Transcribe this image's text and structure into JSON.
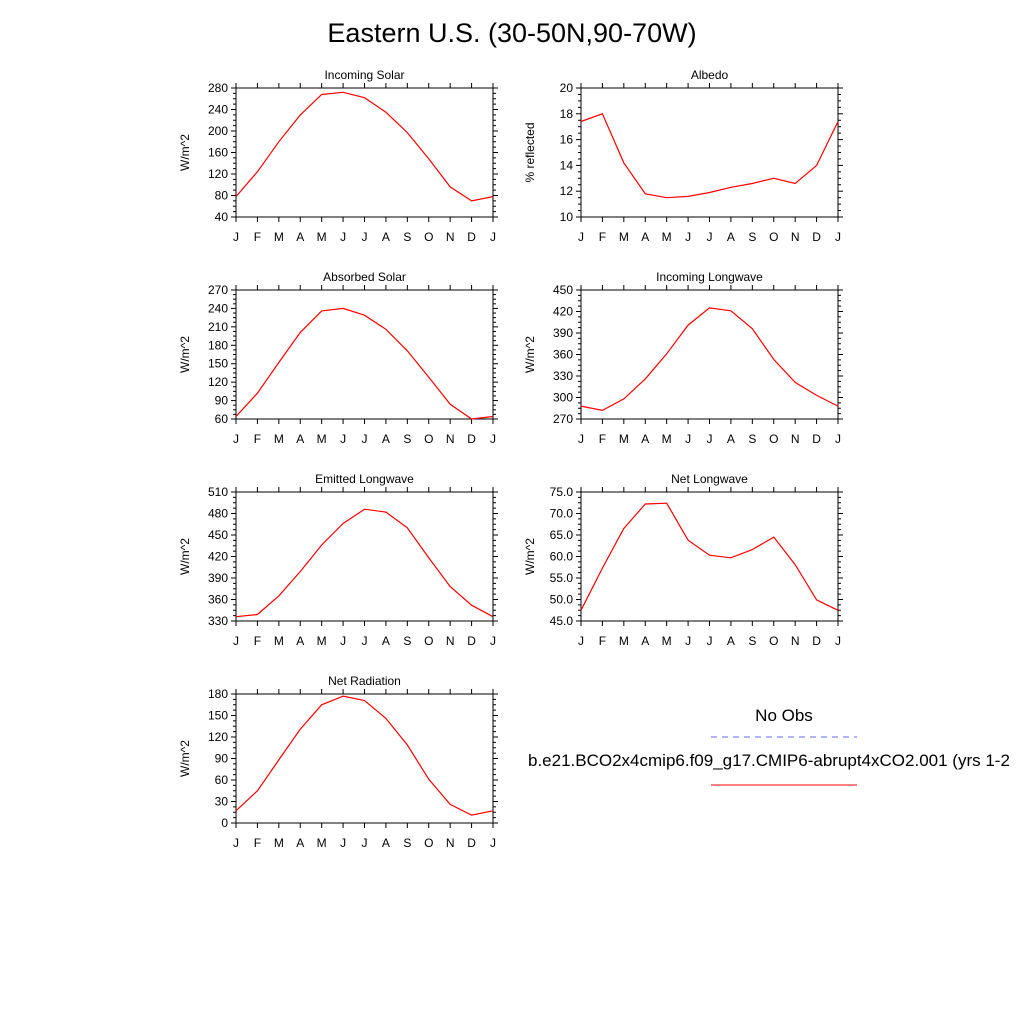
{
  "title": "Eastern U.S. (30-50N,90-70W)",
  "months": [
    "J",
    "F",
    "M",
    "A",
    "M",
    "J",
    "J",
    "A",
    "S",
    "O",
    "N",
    "D",
    "J"
  ],
  "colors": {
    "model": "#ff0000",
    "obs": "#6666ff"
  },
  "legend": {
    "obs_label": "No Obs",
    "model_label": "b.e21.BCO2x4cmip6.f09_g17.CMIP6-abrupt4xCO2.001 (yrs 1-2"
  },
  "chart_data": [
    {
      "type": "line",
      "title": "Incoming Solar",
      "ylabel": "W/m^2",
      "ylim": [
        40,
        280
      ],
      "yticks": [
        40,
        80,
        120,
        160,
        200,
        240,
        280
      ],
      "ytick_labels": [
        "40",
        "80",
        "120",
        "160",
        "200",
        "240",
        "280"
      ],
      "series": [
        {
          "values": [
            78,
            124,
            180,
            230,
            268,
            272,
            262,
            235,
            197,
            148,
            96,
            70,
            78
          ]
        }
      ]
    },
    {
      "type": "line",
      "title": "Albedo",
      "ylabel": "% reflected",
      "ylim": [
        10,
        20
      ],
      "yticks": [
        10,
        12,
        14,
        16,
        18,
        20
      ],
      "ytick_labels": [
        "10",
        "12",
        "14",
        "16",
        "18",
        "20"
      ],
      "series": [
        {
          "values": [
            17.4,
            18.0,
            14.2,
            11.8,
            11.5,
            11.6,
            11.9,
            12.3,
            12.6,
            13.0,
            12.6,
            14.0,
            17.4
          ]
        }
      ]
    },
    {
      "type": "line",
      "title": "Absorbed Solar",
      "ylabel": "W/m^2",
      "ylim": [
        60,
        270
      ],
      "yticks": [
        60,
        90,
        120,
        150,
        180,
        210,
        240,
        270
      ],
      "ytick_labels": [
        "60",
        "90",
        "120",
        "150",
        "180",
        "210",
        "240",
        "270"
      ],
      "series": [
        {
          "values": [
            64,
            102,
            152,
            201,
            236,
            240,
            229,
            206,
            171,
            128,
            84,
            60,
            64
          ]
        }
      ]
    },
    {
      "type": "line",
      "title": "Incoming Longwave",
      "ylabel": "W/m^2",
      "ylim": [
        270,
        450
      ],
      "yticks": [
        270,
        300,
        330,
        360,
        390,
        420,
        450
      ],
      "ytick_labels": [
        "270",
        "300",
        "330",
        "360",
        "390",
        "420",
        "450"
      ],
      "series": [
        {
          "values": [
            288,
            282,
            298,
            326,
            361,
            401,
            425,
            421,
            396,
            353,
            321,
            303,
            288
          ]
        }
      ]
    },
    {
      "type": "line",
      "title": "Emitted Longwave",
      "ylabel": "W/m^2",
      "ylim": [
        330,
        510
      ],
      "yticks": [
        330,
        360,
        390,
        420,
        450,
        480,
        510
      ],
      "ytick_labels": [
        "330",
        "360",
        "390",
        "420",
        "450",
        "480",
        "510"
      ],
      "series": [
        {
          "values": [
            336,
            339,
            365,
            399,
            436,
            466,
            486,
            482,
            460,
            418,
            378,
            352,
            336
          ]
        }
      ]
    },
    {
      "type": "line",
      "title": "Net Longwave",
      "ylabel": "W/m^2",
      "ylim": [
        45,
        75
      ],
      "yticks": [
        45,
        50,
        55,
        60,
        65,
        70,
        75
      ],
      "ytick_labels": [
        "45.0",
        "50.0",
        "55.0",
        "60.0",
        "65.0",
        "70.0",
        "75.0"
      ],
      "series": [
        {
          "values": [
            47.5,
            57.3,
            66.5,
            72.2,
            72.4,
            63.8,
            60.3,
            59.7,
            61.6,
            64.5,
            58.1,
            49.9,
            47.5
          ]
        }
      ]
    },
    {
      "type": "line",
      "title": "Net Radiation",
      "ylabel": "W/m^2",
      "ylim": [
        0,
        180
      ],
      "yticks": [
        0,
        30,
        60,
        90,
        120,
        150,
        180
      ],
      "ytick_labels": [
        "0",
        "30",
        "60",
        "90",
        "120",
        "150",
        "180"
      ],
      "series": [
        {
          "values": [
            17,
            45,
            88,
            131,
            165,
            177,
            171,
            146,
            109,
            61,
            26,
            11,
            17
          ]
        }
      ]
    }
  ]
}
